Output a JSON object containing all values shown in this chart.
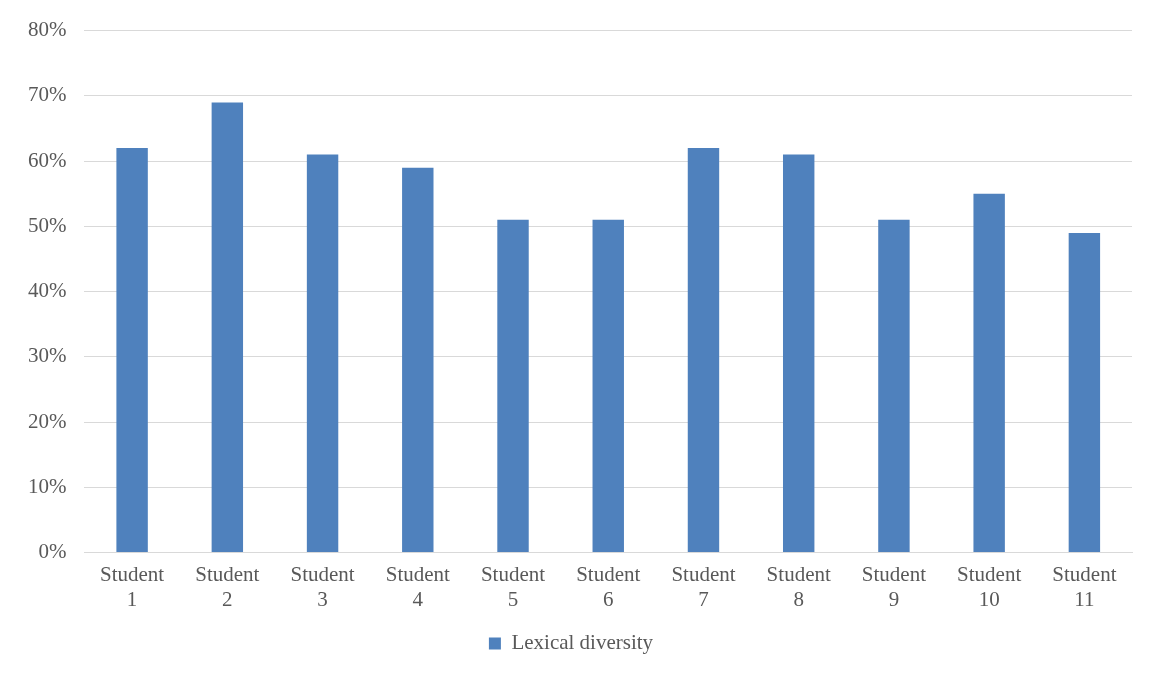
{
  "chart_data": {
    "type": "bar",
    "categories": [
      "Student 1",
      "Student 2",
      "Student 3",
      "Student 4",
      "Student 5",
      "Student 6",
      "Student 7",
      "Student 8",
      "Student 9",
      "Student 10",
      "Student 11"
    ],
    "series": [
      {
        "name": "Lexical diversity",
        "color": "#4f81bd",
        "values": [
          62,
          69,
          61,
          59,
          51,
          51,
          62,
          61,
          51,
          55,
          49
        ]
      }
    ],
    "ylim": [
      0,
      80
    ],
    "yticks": [
      {
        "value": 0,
        "label": "0%"
      },
      {
        "value": 10,
        "label": "10%"
      },
      {
        "value": 20,
        "label": "20%"
      },
      {
        "value": 30,
        "label": "30%"
      },
      {
        "value": 40,
        "label": "40%"
      },
      {
        "value": 50,
        "label": "50%"
      },
      {
        "value": 60,
        "label": "60%"
      },
      {
        "value": 70,
        "label": "70%"
      },
      {
        "value": 80,
        "label": "80%"
      }
    ],
    "grid": "y",
    "legend": "bottom"
  }
}
